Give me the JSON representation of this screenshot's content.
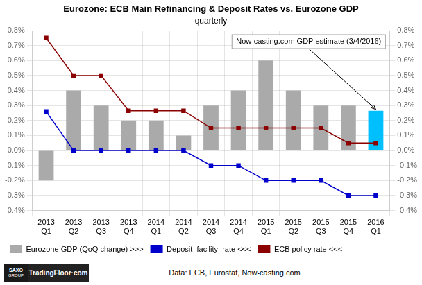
{
  "chart_data": {
    "type": "bar",
    "title": "Eurozone: ECB Main Refinancing & Deposit Rates vs. Eurozone GDP",
    "subtitle": "quarterly",
    "categories": [
      "2013\nQ1",
      "2013\nQ2",
      "2013\nQ3",
      "2013\nQ4",
      "2014\nQ1",
      "2014\nQ2",
      "2014\nQ3",
      "2014\nQ4",
      "2015\nQ1",
      "2015\nQ2",
      "2015\nQ3",
      "2015\nQ4",
      "2016\nQ1"
    ],
    "series": [
      {
        "name": "Eurozone GDP (QoQ change) >>>",
        "type": "bar",
        "colors": [
          "#AAAAAA",
          "#AAAAAA",
          "#AAAAAA",
          "#AAAAAA",
          "#AAAAAA",
          "#AAAAAA",
          "#AAAAAA",
          "#AAAAAA",
          "#AAAAAA",
          "#AAAAAA",
          "#AAAAAA",
          "#AAAAAA",
          "#00BFFF"
        ],
        "values": [
          -0.2,
          0.4,
          0.3,
          0.2,
          0.2,
          0.1,
          0.3,
          0.4,
          0.6,
          0.4,
          0.3,
          0.3,
          0.265
        ]
      },
      {
        "name": "Deposit  facility  rate <<<",
        "type": "line",
        "color": "#0000CC",
        "marker": "square",
        "line_style": "solid",
        "values": [
          0.26,
          0.0,
          0.0,
          0.0,
          0.0,
          0.0,
          -0.1,
          -0.1,
          -0.2,
          -0.2,
          -0.2,
          -0.3,
          -0.3
        ]
      },
      {
        "name": "ECB policy rate <<<",
        "type": "line",
        "color": "#8B0000",
        "marker": "square",
        "line_style": "solid",
        "values": [
          0.75,
          0.5,
          0.5,
          0.265,
          0.265,
          0.265,
          0.15,
          0.15,
          0.15,
          0.15,
          0.15,
          0.05,
          0.05
        ]
      }
    ],
    "ylim": [
      -0.4,
      0.8
    ],
    "yticks": [
      {
        "value": -0.4,
        "label": "-0.4%"
      },
      {
        "value": -0.3,
        "label": "-0.3%"
      },
      {
        "value": -0.2,
        "label": "-0.2%"
      },
      {
        "value": -0.1,
        "label": "-0.1%"
      },
      {
        "value": 0.0,
        "label": "0.0%"
      },
      {
        "value": 0.1,
        "label": "0.1%"
      },
      {
        "value": 0.2,
        "label": "0.2%"
      },
      {
        "value": 0.3,
        "label": "0.3%"
      },
      {
        "value": 0.4,
        "label": "0.4%"
      },
      {
        "value": 0.5,
        "label": "0.5%"
      },
      {
        "value": 0.6,
        "label": "0.6%"
      },
      {
        "value": 0.7,
        "label": "0.7%"
      },
      {
        "value": 0.8,
        "label": "0.8%"
      }
    ],
    "y2lim": [
      -0.4,
      0.8
    ],
    "y2ticks": [
      {
        "value": -0.4,
        "label": "-0.4%"
      },
      {
        "value": -0.3,
        "label": "-0.3%"
      },
      {
        "value": -0.2,
        "label": "-0.2%"
      },
      {
        "value": -0.1,
        "label": "-0.1%"
      },
      {
        "value": 0.0,
        "label": "0.0%"
      },
      {
        "value": 0.1,
        "label": "0.1%"
      },
      {
        "value": 0.2,
        "label": "0.2%"
      },
      {
        "value": 0.3,
        "label": "0.3%"
      },
      {
        "value": 0.4,
        "label": "0.4%"
      },
      {
        "value": 0.5,
        "label": "0.5%"
      },
      {
        "value": 0.6,
        "label": "0.6%"
      },
      {
        "value": 0.7,
        "label": "0.7%"
      },
      {
        "value": 0.8,
        "label": "0.8%"
      }
    ],
    "grid": true,
    "legend": "lower left",
    "annotations": [
      {
        "text": "Now-casting.com GDP estimate (3/4/2016)",
        "x": "2016\nQ1",
        "y": 0.265
      }
    ],
    "source": "Data: ECB, Eurostat, Now-casting.com",
    "logo": [
      "SAXO",
      "GROUP",
      "TradingFloor·com"
    ]
  }
}
